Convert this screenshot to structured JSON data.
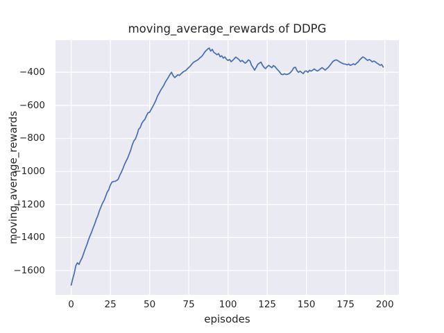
{
  "chart_data": {
    "type": "line",
    "title": "moving_average_rewards of DDPG",
    "xlabel": "episodes",
    "ylabel": "moving_average_rewards",
    "xlim": [
      -10,
      209
    ],
    "ylim": [
      -1747,
      -206
    ],
    "x_ticks": [
      0,
      25,
      50,
      75,
      100,
      125,
      150,
      175,
      200
    ],
    "y_ticks": [
      -400,
      -600,
      -800,
      -1000,
      -1200,
      -1400,
      -1600
    ],
    "grid": true,
    "legend": "none",
    "style": "seaborn-darkgrid",
    "axes_background": "#eaeaf2",
    "grid_color": "#ffffff",
    "text_color": "#262626",
    "series": [
      {
        "name": "moving_average_rewards",
        "color": "#4c72b0",
        "x_start": 0,
        "x_step": 1,
        "values": [
          -1688,
          -1650,
          -1615,
          -1570,
          -1553,
          -1563,
          -1540,
          -1522,
          -1495,
          -1468,
          -1444,
          -1415,
          -1390,
          -1368,
          -1342,
          -1318,
          -1290,
          -1268,
          -1238,
          -1215,
          -1192,
          -1175,
          -1150,
          -1125,
          -1110,
          -1082,
          -1065,
          -1061,
          -1060,
          -1055,
          -1047,
          -1023,
          -1005,
          -983,
          -958,
          -938,
          -920,
          -895,
          -870,
          -838,
          -815,
          -803,
          -778,
          -745,
          -735,
          -710,
          -695,
          -685,
          -663,
          -645,
          -642,
          -625,
          -608,
          -590,
          -570,
          -545,
          -528,
          -510,
          -495,
          -480,
          -460,
          -445,
          -430,
          -413,
          -400,
          -420,
          -432,
          -424,
          -415,
          -419,
          -410,
          -401,
          -394,
          -390,
          -380,
          -371,
          -362,
          -350,
          -340,
          -334,
          -329,
          -323,
          -313,
          -306,
          -295,
          -280,
          -269,
          -260,
          -253,
          -272,
          -261,
          -280,
          -286,
          -294,
          -287,
          -306,
          -300,
          -314,
          -307,
          -321,
          -328,
          -323,
          -336,
          -328,
          -318,
          -308,
          -315,
          -323,
          -335,
          -328,
          -337,
          -345,
          -337,
          -325,
          -331,
          -357,
          -371,
          -387,
          -370,
          -352,
          -345,
          -338,
          -357,
          -370,
          -378,
          -366,
          -358,
          -366,
          -372,
          -359,
          -366,
          -378,
          -388,
          -399,
          -412,
          -414,
          -409,
          -413,
          -412,
          -408,
          -400,
          -388,
          -372,
          -370,
          -390,
          -400,
          -393,
          -401,
          -408,
          -394,
          -392,
          -400,
          -388,
          -393,
          -387,
          -380,
          -387,
          -392,
          -387,
          -379,
          -372,
          -379,
          -387,
          -378,
          -370,
          -358,
          -346,
          -334,
          -328,
          -325,
          -329,
          -336,
          -341,
          -346,
          -350,
          -351,
          -355,
          -350,
          -358,
          -354,
          -349,
          -354,
          -345,
          -337,
          -325,
          -316,
          -307,
          -312,
          -320,
          -328,
          -323,
          -328,
          -337,
          -332,
          -337,
          -345,
          -350,
          -358,
          -353,
          -368
        ]
      }
    ]
  }
}
